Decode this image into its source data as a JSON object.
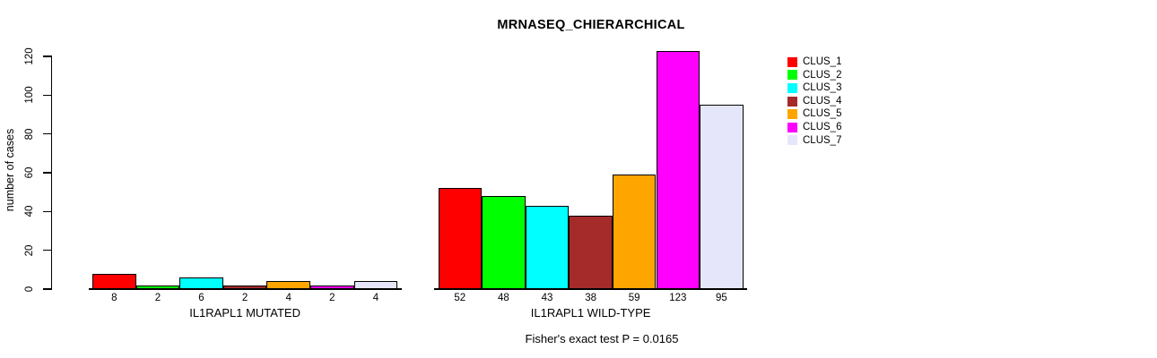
{
  "title": "MRNASEQ_CHIERARCHICAL",
  "footnote": "Fisher's exact test P = 0.0165",
  "chart_data": {
    "type": "bar",
    "title": "MRNASEQ_CHIERARCHICAL",
    "xlabel": "",
    "ylabel": "number of cases",
    "ylim": [
      0,
      120
    ],
    "yticks": [
      0,
      20,
      40,
      60,
      80,
      100,
      120
    ],
    "grid": false,
    "legend_position": "right",
    "series_labels": [
      "CLUS_1",
      "CLUS_2",
      "CLUS_3",
      "CLUS_4",
      "CLUS_5",
      "CLUS_6",
      "CLUS_7"
    ],
    "colors": [
      "#ff0000",
      "#00ff00",
      "#00ffff",
      "#a52a2a",
      "#ffa500",
      "#ff00ff",
      "#e6e6fa"
    ],
    "bar_border_color": "#000000",
    "groups": [
      {
        "label": "IL1RAPL1 MUTATED",
        "values": [
          8,
          2,
          6,
          2,
          4,
          2,
          4
        ]
      },
      {
        "label": "IL1RAPL1 WILD-TYPE",
        "values": [
          52,
          48,
          43,
          38,
          59,
          123,
          95
        ]
      }
    ],
    "annotation": "Fisher's exact test P = 0.0165"
  }
}
